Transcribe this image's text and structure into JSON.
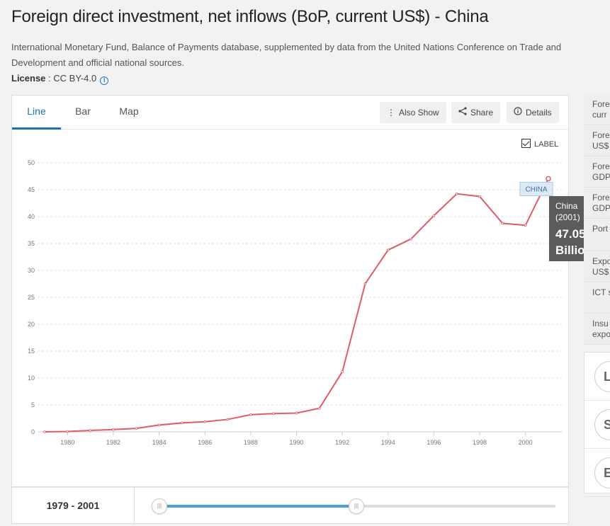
{
  "page": {
    "title": "Foreign direct investment, net inflows (BoP, current US$) - China",
    "source": "International Monetary Fund, Balance of Payments database, supplemented by data from the United Nations Conference on Trade and Development and official national sources.",
    "license_label": "License",
    "license_value": " : CC BY-4.0"
  },
  "tabs": [
    {
      "label": "Line",
      "active": true
    },
    {
      "label": "Bar",
      "active": false
    },
    {
      "label": "Map",
      "active": false
    }
  ],
  "toolbar": {
    "also_show": "Also Show",
    "share": "Share",
    "details": "Details"
  },
  "label_toggle": {
    "text": "LABEL",
    "checked": true
  },
  "tooltip": {
    "country": "China",
    "year": "(2001)",
    "value": "47.05",
    "unit": "Billion"
  },
  "range": {
    "label": "1979 - 2001"
  },
  "right_panel": {
    "items": [
      [
        "Fore",
        "curr"
      ],
      [
        "Fore",
        "US$"
      ],
      [
        "Fore",
        "GDP"
      ],
      [
        "Fore",
        "GDP"
      ],
      [
        "Port"
      ],
      [
        "Expo",
        "US$"
      ],
      [
        "ICT s"
      ],
      [
        "Insu",
        "expo"
      ]
    ],
    "cards": [
      "LI",
      "S",
      "E"
    ]
  },
  "chart_data": {
    "type": "line",
    "series": [
      {
        "name": "CHINA",
        "color": "#e05c66",
        "x": [
          1979,
          1980,
          1981,
          1982,
          1983,
          1984,
          1985,
          1986,
          1987,
          1988,
          1989,
          1990,
          1991,
          1992,
          1993,
          1994,
          1995,
          1996,
          1997,
          1998,
          1999,
          2000,
          2001
        ],
        "values": [
          0.0,
          0.06,
          0.27,
          0.43,
          0.64,
          1.26,
          1.66,
          1.88,
          2.31,
          3.19,
          3.39,
          3.49,
          4.37,
          11.16,
          27.52,
          33.79,
          35.85,
          40.18,
          44.24,
          43.75,
          38.75,
          38.4,
          47.05
        ]
      }
    ],
    "xticks": [
      "1980",
      "1982",
      "1984",
      "1986",
      "1988",
      "1990",
      "1992",
      "1994",
      "1996",
      "1998",
      "2000"
    ],
    "yticks": [
      "0",
      "5",
      "10",
      "15",
      "20",
      "25",
      "30",
      "35",
      "40",
      "45",
      "50"
    ],
    "ylim": [
      0,
      50
    ],
    "xlim": [
      1979,
      2001
    ],
    "grid": true,
    "title": "",
    "xlabel": "",
    "ylabel": ""
  }
}
